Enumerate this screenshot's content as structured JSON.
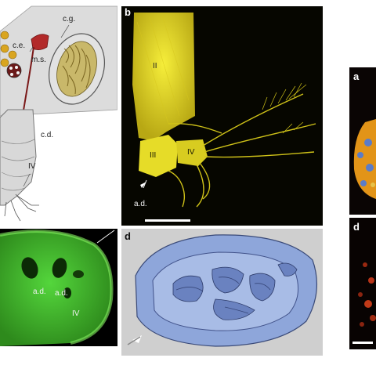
{
  "panels": {
    "schematic": {
      "labels": {
        "cg": "c.g.",
        "ce": "c.e.",
        "ms": "m.s.",
        "cd": "c.d.",
        "iv": "IV"
      }
    },
    "b": {
      "letter": "b",
      "labels": {
        "ii": "II",
        "iii": "III",
        "iv": "IV",
        "ad": "a.d."
      }
    },
    "c": {
      "labels": {
        "ad1": "a.d.",
        "ad2": "a.d.",
        "iv": "IV"
      }
    },
    "d": {
      "letter": "d"
    },
    "right_top": {
      "letter": "a"
    },
    "right_bottom": {
      "letter": "d"
    }
  },
  "colors": {
    "fluorescence_yellow": "#e8e020",
    "fluorescence_green": "#4fd03a",
    "render_blue": "#8fa8dc",
    "fluorescence_red": "#c83018",
    "schematic_gray": "#d9d9d9"
  }
}
